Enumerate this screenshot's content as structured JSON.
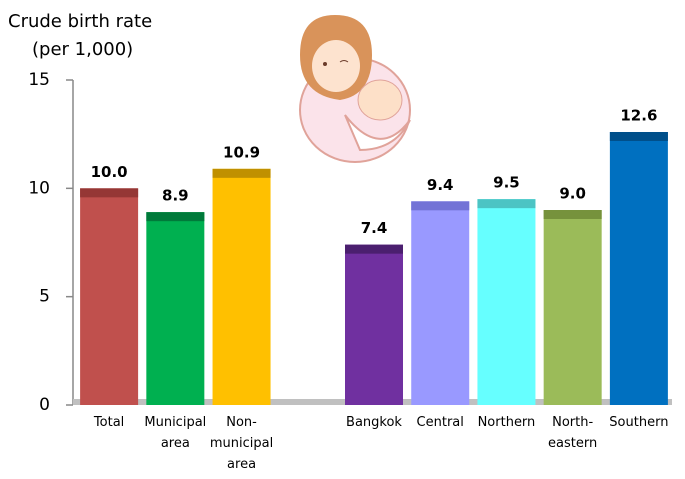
{
  "chart_data": {
    "type": "bar",
    "title": "Crude birth rate",
    "subtitle": "(per 1,000)",
    "categories": [
      "Total",
      "Municipal area",
      "Non-municipal area",
      null,
      "Bangkok",
      "Central",
      "Northern",
      "North-eastern",
      "Southern"
    ],
    "values": [
      10.0,
      8.9,
      10.9,
      null,
      7.4,
      9.4,
      9.5,
      9.0,
      12.6
    ],
    "value_labels": [
      "10.0",
      "8.9",
      "10.9",
      null,
      "7.4",
      "9.4",
      "9.5",
      "9.0",
      "12.6"
    ],
    "colors": [
      "#c0504d",
      "#00b050",
      "#ffc000",
      null,
      "#7030a0",
      "#9999ff",
      "#66ffff",
      "#9bbb59",
      "#0070c0"
    ],
    "cap_colors": [
      "#953735",
      "#007a3a",
      "#c09000",
      null,
      "#4b1f6f",
      "#7373d6",
      "#4cc4c4",
      "#76923c",
      "#004f8a"
    ],
    "ylim": [
      0,
      15
    ],
    "yticks": [
      0,
      5,
      10,
      15
    ]
  }
}
